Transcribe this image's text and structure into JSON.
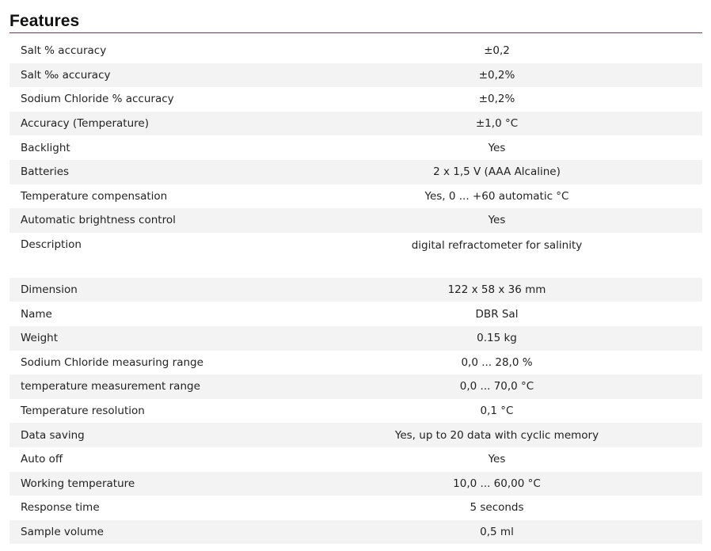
{
  "section": {
    "title": "Features"
  },
  "specs": [
    {
      "label": "Salt % accuracy",
      "value": "±0,2"
    },
    {
      "label": "Salt ‰ accuracy",
      "value": "±0,2%"
    },
    {
      "label": "Sodium Chloride % accuracy",
      "value": "±0,2%"
    },
    {
      "label": "Accuracy (Temperature)",
      "value": "±1,0 °C"
    },
    {
      "label": "Backlight",
      "value": "Yes"
    },
    {
      "label": "Batteries",
      "value": "2 x 1,5 V (AAA Alcaline)"
    },
    {
      "label": "Temperature compensation",
      "value": "Yes, 0 ... +60 automatic °C"
    },
    {
      "label": "Automatic brightness control",
      "value": "Yes"
    },
    {
      "label": "Description",
      "value": "digital refractometer for salinity"
    },
    {
      "label": "Dimension",
      "value": "122 x 58 x 36 mm"
    },
    {
      "label": "Name",
      "value": "DBR Sal"
    },
    {
      "label": "Weight",
      "value": "0.15 kg"
    },
    {
      "label": "Sodium Chloride measuring range",
      "value": "0,0 ... 28,0 %"
    },
    {
      "label": "temperature measurement range",
      "value": "0,0 ... 70,0 °C"
    },
    {
      "label": "Temperature resolution",
      "value": "0,1 °C"
    },
    {
      "label": "Data saving",
      "value": "Yes, up to 20 data with cyclic memory"
    },
    {
      "label": "Auto off",
      "value": "Yes"
    },
    {
      "label": "Working temperature",
      "value": "10,0 ... 60,00 °C"
    },
    {
      "label": "Response time",
      "value": "5 seconds"
    },
    {
      "label": "Sample volume",
      "value": "0,5 ml"
    }
  ]
}
